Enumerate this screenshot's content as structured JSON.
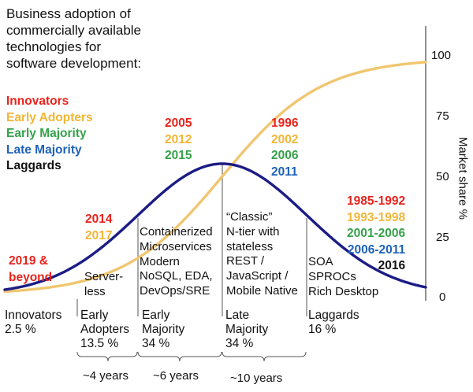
{
  "intro_text": "Business adoption of\ncommercially available\ntechnologies for\nsoftware development:",
  "legend": [
    {
      "label": "Innovators",
      "color": "#e8231c"
    },
    {
      "label": "Early Adopters",
      "color": "#f2b635"
    },
    {
      "label": "Early Majority",
      "color": "#35a24a"
    },
    {
      "label": "Late Majority",
      "color": "#1d62b7"
    },
    {
      "label": "Laggards",
      "color": "#111111"
    }
  ],
  "colors": {
    "bell_curve": "#1c1c86",
    "s_curve": "#f0c670",
    "divider": "#555555"
  },
  "axis": {
    "title": "Market share %",
    "ticks": [
      "100",
      "75",
      "50",
      "25",
      "0"
    ]
  },
  "year_groups": {
    "innovators": [
      "2019 &",
      "beyond"
    ],
    "early_adopters": [
      "2014",
      "2017"
    ],
    "early_majority": [
      "2005",
      "2012",
      "2015"
    ],
    "late_majority": [
      "1996",
      "2002",
      "2006",
      "2011"
    ],
    "laggards": [
      "1985-1992",
      "1993-1998",
      "2001-2006",
      "2006-2011",
      "2016"
    ]
  },
  "segments": {
    "early_adopters": "Server-\nless",
    "early_majority": "Containerized\nMicroservices\nModern\nNoSQL, EDA,\nDevOps/SRE",
    "late_majority": "“Classic”\nN-tier with\nstateless\nREST /\nJavaScript /\nMobile Native",
    "laggards": "SOA\nSPROCs\nRich Desktop"
  },
  "categories": {
    "innovators": "Innovators\n2.5 %",
    "early_adopters": "Early\nAdopters\n13.5 %",
    "early_majority": "Early\nMajority\n34 %",
    "late_majority": "Late\nMajority\n34 %",
    "laggards": "Laggards\n16 %"
  },
  "durations": {
    "early_adopters": "~4 years",
    "early_majority": "~6 years",
    "late_majority": "~10 years"
  }
}
